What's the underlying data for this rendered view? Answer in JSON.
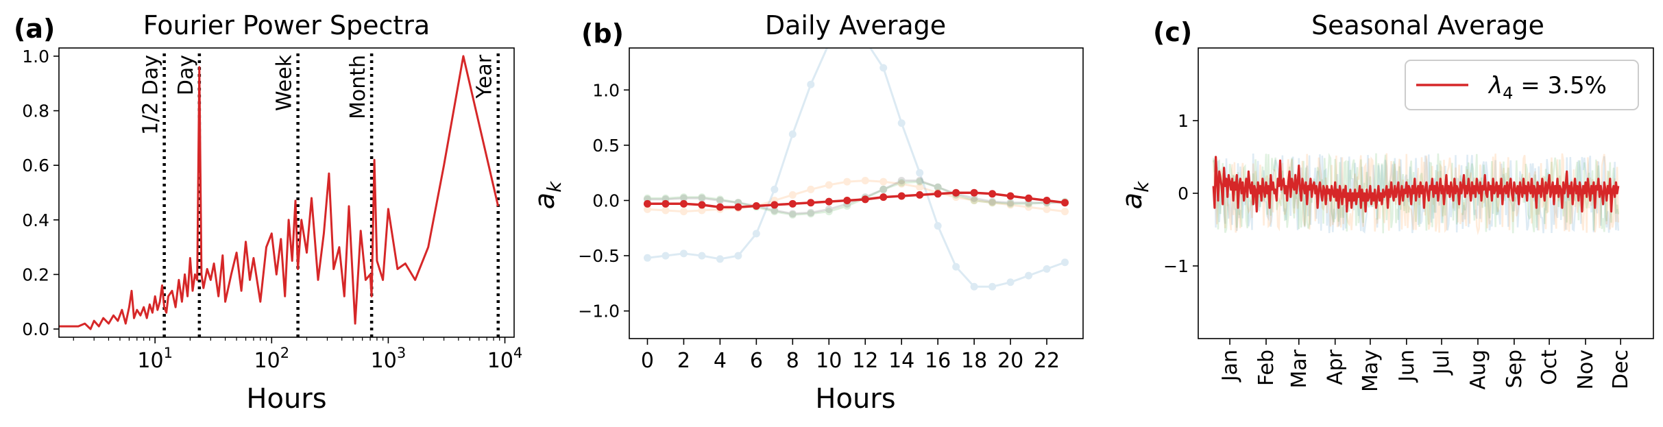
{
  "chart_data": [
    {
      "panel": "(a)",
      "type": "line",
      "title": "Fourier Power Spectra",
      "xlabel": "Hours",
      "ylabel": "",
      "xscale": "log",
      "xlim": [
        1.5,
        12000
      ],
      "ylim": [
        -0.03,
        1.03
      ],
      "xticks": [
        10,
        100,
        1000,
        10000
      ],
      "xtick_labels": [
        {
          "base": "10",
          "exp": "1"
        },
        {
          "base": "10",
          "exp": "2"
        },
        {
          "base": "10",
          "exp": "3"
        },
        {
          "base": "10",
          "exp": "4"
        }
      ],
      "yticks": [
        0.0,
        0.2,
        0.4,
        0.6,
        0.8,
        1.0
      ],
      "ytick_labels": [
        "0.0",
        "0.2",
        "0.4",
        "0.6",
        "0.8",
        "1.0"
      ],
      "series_color": "#d62728",
      "annotations": [
        {
          "label": "1/2 Day",
          "x": 12
        },
        {
          "label": "Day",
          "x": 24
        },
        {
          "label": "Week",
          "x": 168
        },
        {
          "label": "Month",
          "x": 720
        },
        {
          "label": "Year",
          "x": 8760
        }
      ],
      "series": [
        {
          "x": [
            1.5,
            2.0,
            2.2,
            2.5,
            2.8,
            3.0,
            3.3,
            3.6,
            4.0,
            4.4,
            4.8,
            5.2,
            5.6,
            6.0,
            6.3,
            6.6,
            7.0,
            7.5,
            8.0,
            8.5,
            9.0,
            9.5,
            10.0,
            10.5,
            11.0,
            11.5,
            12.0,
            12.5,
            13.0,
            14.0,
            15.0,
            16.0,
            17.0,
            18.0,
            19.0,
            20.0,
            21.0,
            22.0,
            23.0,
            24.0,
            25.0,
            26.0,
            28.0,
            30.0,
            32.0,
            35.0,
            38.0,
            40.0,
            45.0,
            50.0,
            55.0,
            60.0,
            65.0,
            70.0,
            80.0,
            90.0,
            100.0,
            110.0,
            120.0,
            130.0,
            140.0,
            150.0,
            160.0,
            168.0,
            180.0,
            200.0,
            220.0,
            250.0,
            280.0,
            310.0,
            340.0,
            380.0,
            420.0,
            460.0,
            520.0,
            580.0,
            640.0,
            700.0,
            720.0,
            760.0,
            800.0,
            900.0,
            1000.0,
            1200.0,
            1400.0,
            1700.0,
            2200.0,
            3000.0,
            4400.0,
            8760.0
          ],
          "y": [
            0.01,
            0.01,
            0.01,
            0.02,
            0.0,
            0.03,
            0.01,
            0.04,
            0.02,
            0.05,
            0.03,
            0.07,
            0.02,
            0.08,
            0.14,
            0.04,
            0.07,
            0.05,
            0.08,
            0.04,
            0.09,
            0.06,
            0.12,
            0.07,
            0.1,
            0.16,
            0.08,
            0.06,
            0.12,
            0.14,
            0.08,
            0.18,
            0.1,
            0.2,
            0.12,
            0.26,
            0.14,
            0.2,
            0.18,
            0.96,
            0.2,
            0.15,
            0.22,
            0.18,
            0.24,
            0.12,
            0.27,
            0.1,
            0.2,
            0.28,
            0.14,
            0.32,
            0.18,
            0.26,
            0.1,
            0.3,
            0.35,
            0.2,
            0.33,
            0.12,
            0.4,
            0.25,
            0.47,
            0.22,
            0.4,
            0.28,
            0.48,
            0.18,
            0.35,
            0.57,
            0.22,
            0.3,
            0.12,
            0.45,
            0.02,
            0.36,
            0.18,
            0.2,
            0.12,
            0.62,
            0.25,
            0.18,
            0.44,
            0.22,
            0.24,
            0.18,
            0.3,
            0.6,
            1.0,
            0.45
          ]
        }
      ]
    },
    {
      "panel": "(b)",
      "type": "line",
      "title": "Daily Average",
      "xlabel": "Hours",
      "ylabel": "a_k",
      "xlim": [
        -1,
        24
      ],
      "ylim": [
        -1.25,
        1.38
      ],
      "xticks": [
        0,
        2,
        4,
        6,
        8,
        10,
        12,
        14,
        16,
        18,
        20,
        22
      ],
      "xtick_labels": [
        "0",
        "2",
        "4",
        "6",
        "8",
        "10",
        "12",
        "14",
        "16",
        "18",
        "20",
        "22"
      ],
      "yticks": [
        -1.0,
        -0.5,
        0.0,
        0.5,
        1.0
      ],
      "ytick_labels": [
        "−1.0",
        "−0.5",
        "0.0",
        "0.5",
        "1.0"
      ],
      "x": [
        0,
        1,
        2,
        3,
        4,
        5,
        6,
        7,
        8,
        9,
        10,
        11,
        12,
        13,
        14,
        15,
        16,
        17,
        18,
        19,
        20,
        21,
        22,
        23
      ],
      "series": [
        {
          "color": "#1f77b4",
          "opacity": 0.15,
          "values": [
            -0.52,
            -0.5,
            -0.48,
            -0.5,
            -0.53,
            -0.5,
            -0.3,
            0.1,
            0.6,
            1.05,
            1.42,
            1.5,
            1.45,
            1.2,
            0.7,
            0.25,
            -0.23,
            -0.6,
            -0.78,
            -0.78,
            -0.74,
            -0.68,
            -0.62,
            -0.56
          ]
        },
        {
          "color": "#ff7f0e",
          "opacity": 0.15,
          "values": [
            -0.08,
            -0.09,
            -0.1,
            -0.09,
            -0.08,
            -0.07,
            -0.05,
            0.0,
            0.05,
            0.1,
            0.14,
            0.17,
            0.18,
            0.17,
            0.15,
            0.12,
            0.07,
            0.03,
            0.0,
            -0.02,
            -0.04,
            -0.06,
            -0.08,
            -0.1
          ]
        },
        {
          "color": "#2ca02c",
          "opacity": 0.15,
          "values": [
            0.02,
            0.02,
            0.03,
            0.03,
            0.01,
            -0.02,
            -0.06,
            -0.1,
            -0.13,
            -0.12,
            -0.1,
            -0.05,
            0.02,
            0.1,
            0.16,
            0.17,
            0.12,
            0.05,
            0.0,
            -0.02,
            -0.03,
            -0.03,
            -0.02,
            -0.01
          ]
        },
        {
          "color": "#7f7f7f",
          "opacity": 0.25,
          "values": [
            0.01,
            0.01,
            0.02,
            0.02,
            0.0,
            -0.02,
            -0.05,
            -0.09,
            -0.12,
            -0.11,
            -0.08,
            -0.03,
            0.03,
            0.1,
            0.18,
            0.18,
            0.12,
            0.06,
            0.02,
            -0.01,
            -0.02,
            -0.02,
            -0.02,
            -0.02
          ]
        },
        {
          "color": "#d62728",
          "opacity": 1.0,
          "values": [
            -0.03,
            -0.03,
            -0.03,
            -0.04,
            -0.06,
            -0.06,
            -0.05,
            -0.04,
            -0.03,
            -0.02,
            -0.01,
            0.0,
            0.01,
            0.03,
            0.04,
            0.05,
            0.06,
            0.07,
            0.07,
            0.06,
            0.04,
            0.02,
            0.0,
            -0.02
          ]
        }
      ]
    },
    {
      "panel": "(c)",
      "type": "line",
      "title": "Seasonal Average",
      "xlabel": "",
      "ylabel": "a_k",
      "xlim": [
        -12,
        377
      ],
      "ylim": [
        -2.0,
        2.0
      ],
      "month_ticks": [
        15,
        46,
        74,
        105,
        135,
        166,
        196,
        227,
        258,
        288,
        319,
        349
      ],
      "month_labels": [
        "Jan",
        "Feb",
        "Mar",
        "Apr",
        "May",
        "Jun",
        "Jul",
        "Aug",
        "Sep",
        "Oct",
        "Nov",
        "Dec"
      ],
      "yticks": [
        -1,
        0,
        1
      ],
      "ytick_labels": [
        "−1",
        "0",
        "1"
      ],
      "legend": {
        "position": "upper right",
        "label_prefix": "λ",
        "label_subscript": "4",
        "label_suffix": " = 3.5%"
      },
      "background_colors": [
        "#1f77b4",
        "#ff7f0e",
        "#2ca02c"
      ],
      "background_opacity": 0.15,
      "background_amplitude": 0.55,
      "series": [
        {
          "name": "λ4 = 3.5%",
          "color": "#d62728",
          "start_day": 1,
          "step_days": 1,
          "values": [
            0.1,
            -0.2,
            0.5,
            0.2,
            -0.1,
            0.3,
            0.2,
            0.1,
            -0.15,
            0.35,
            0.1,
            0.2,
            -0.05,
            0.25,
            0.15,
            0.05,
            0.2,
            -0.1,
            0.15,
            0.05,
            0.25,
            -0.2,
            0.1,
            0.2,
            0.0,
            0.15,
            -0.1,
            0.05,
            0.2,
            -0.05,
            0.3,
            0.1,
            0.0,
            0.15,
            -0.15,
            0.1,
            0.05,
            -0.25,
            0.15,
            0.0,
            0.1,
            -0.1,
            0.2,
            0.05,
            -0.05,
            0.15,
            0.0,
            0.1,
            -0.2,
            0.25,
            0.05,
            0.15,
            0.0,
            0.05,
            -0.1,
            0.2,
            0.1,
            0.45,
            0.05,
            0.15,
            0.2,
            0.0,
            0.1,
            -0.1,
            0.15,
            0.3,
            -0.05,
            0.2,
            0.1,
            0.05,
            0.25,
            0.0,
            0.15,
            0.38,
            0.05,
            -0.1,
            0.2,
            0.1,
            0.0,
            0.15,
            -0.15,
            0.1,
            0.05,
            0.2,
            -0.05,
            0.1,
            0.15,
            0.0,
            0.1,
            -0.2,
            0.05,
            0.15,
            0.0,
            -0.1,
            0.1,
            0.05,
            -0.15,
            0.1,
            0.0,
            0.05,
            -0.1,
            0.1,
            0.0,
            -0.05,
            0.15,
            -0.1,
            0.05,
            -0.2,
            0.1,
            0.0,
            -0.15,
            0.05,
            -0.05,
            0.1,
            -0.25,
            0.0,
            -0.1,
            0.05,
            -0.2,
            0.0,
            -0.1,
            0.05,
            -0.15,
            0.0,
            -0.05,
            0.1,
            -0.2,
            0.05,
            -0.1,
            0.0,
            -0.25,
            0.05,
            -0.1,
            -0.05,
            0.1,
            -0.15,
            0.0,
            -0.1,
            0.05,
            -0.2,
            -0.05,
            0.1,
            -0.1,
            0.0,
            -0.15,
            0.05,
            -0.05,
            0.0,
            0.1,
            -0.2,
            0.05,
            -0.05,
            0.15,
            0.0,
            -0.1,
            0.1,
            -0.05,
            0.05,
            0.15,
            -0.15,
            0.0,
            0.1,
            -0.1,
            0.05,
            0.0,
            0.15,
            -0.05,
            0.1,
            0.05,
            -0.15,
            0.1,
            0.0,
            0.2,
            -0.1,
            0.05,
            0.1,
            -0.05,
            0.15,
            0.0,
            0.1,
            -0.2,
            0.05,
            0.15,
            0.0,
            -0.1,
            0.1,
            0.05,
            0.2,
            -0.05,
            0.1,
            0.0,
            0.15,
            -0.1,
            0.05,
            0.2,
            0.0,
            0.1,
            -0.15,
            0.05,
            0.25,
            0.0,
            0.1,
            -0.05,
            0.15,
            0.05,
            -0.1,
            0.2,
            0.0,
            0.1,
            0.05,
            -0.15,
            0.15,
            0.0,
            0.1,
            0.25,
            -0.05,
            0.1,
            0.0,
            0.2,
            0.05,
            -0.1,
            0.15,
            0.0,
            0.1,
            -0.05,
            0.2,
            0.05,
            0.0,
            0.15,
            -0.1,
            0.1,
            0.05,
            0.25,
            0.0,
            -0.05,
            0.15,
            0.05,
            0.1,
            -0.1,
            0.2,
            0.0,
            0.05,
            0.15,
            -0.05,
            0.1,
            0.0,
            0.2,
            -0.15,
            0.05,
            0.1,
            0.0,
            0.15,
            -0.05,
            0.1,
            0.2,
            0.0,
            -0.1,
            0.15,
            0.05,
            0.0,
            0.1,
            -0.15,
            0.15,
            0.05,
            -0.05,
            0.2,
            0.0,
            0.1,
            -0.1,
            0.15,
            0.05,
            0.0,
            0.2,
            -0.05,
            0.1,
            0.05,
            -0.2,
            0.15,
            0.0,
            0.1,
            -0.05,
            0.2,
            0.05,
            -0.1,
            0.15,
            0.0,
            0.1,
            0.25,
            -0.05,
            0.05,
            0.15,
            -0.15,
            0.1,
            0.0,
            0.2,
            -0.05,
            0.1,
            0.05,
            -0.2,
            0.15,
            0.0,
            0.1,
            0.3,
            -0.05,
            0.1,
            0.0,
            0.15,
            -0.15,
            0.05,
            0.2,
            0.0,
            0.1,
            -0.1,
            0.15,
            0.05,
            -0.25,
            0.1,
            0.0,
            0.15,
            -0.05,
            0.2,
            0.05,
            -0.1,
            0.1,
            0.0,
            0.15,
            -0.2,
            0.1,
            0.05,
            0.2,
            -0.05,
            0.1,
            0.0,
            -0.15,
            0.15,
            0.05,
            -0.1,
            0.1,
            0.0,
            0.2,
            -0.25,
            0.05,
            0.1,
            -0.05,
            0.15,
            0.0,
            0.1
          ]
        }
      ]
    }
  ]
}
